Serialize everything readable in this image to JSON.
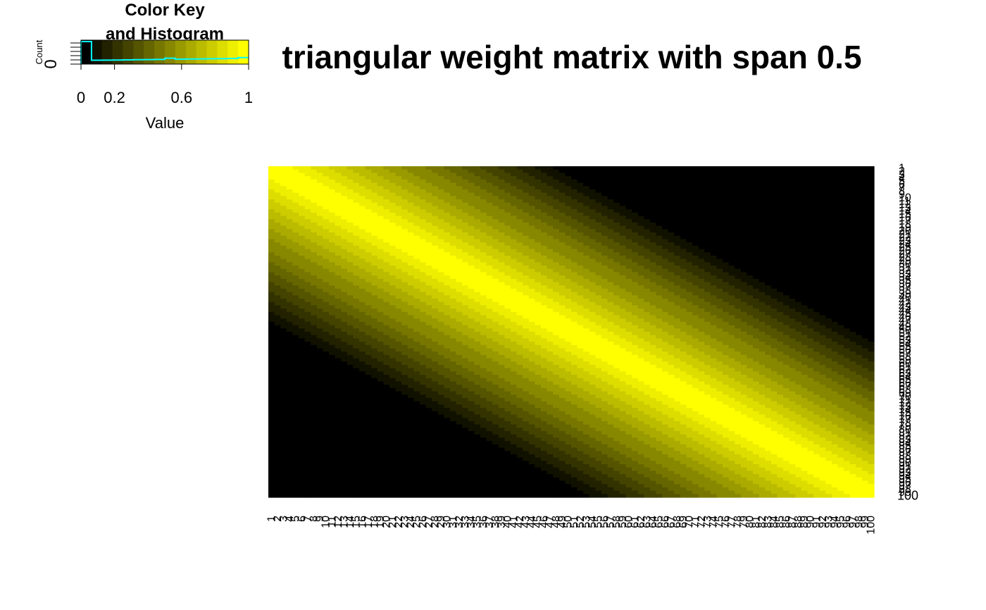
{
  "chart_data": [
    {
      "type": "heatmap",
      "title": "triangular weight matrix with span 0.5",
      "rows": {
        "first": 1,
        "last": 100,
        "count": 100
      },
      "cols": {
        "first": 1,
        "last": 100,
        "count": 100
      },
      "weight_rule": "w(i,j) = max(0, 1 - |i - j| / 50)",
      "value_range": [
        0,
        1
      ],
      "color_scale": {
        "low": "#000000",
        "high": "#ffff00",
        "bins": 16
      },
      "row_label_last": "100"
    },
    {
      "type": "histogram",
      "title": "Color Key\nand Histogram",
      "title_lines": [
        "Color Key",
        "and Histogram"
      ],
      "xlabel": "Value",
      "ylabel": "Count",
      "y_tick_label": "0",
      "xticks": [
        0,
        0.2,
        0.6,
        1
      ],
      "xtick_labels": [
        "0",
        "0.2",
        "0.6",
        "1"
      ],
      "xlim": [
        0,
        1
      ],
      "hist_line_color": "#00ffff"
    }
  ]
}
